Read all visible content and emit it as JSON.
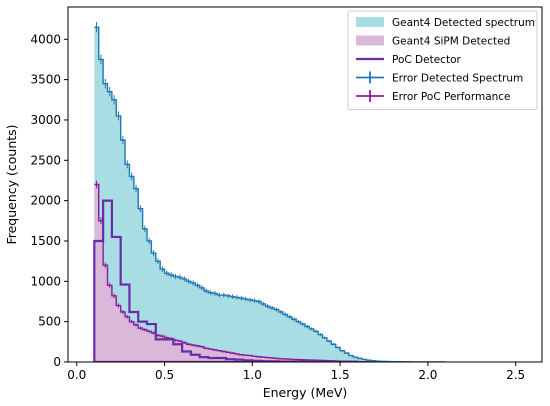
{
  "chart_data": {
    "type": "histogram",
    "xlabel": "Energy (MeV)",
    "ylabel": "Frequency (counts)",
    "xlim": [
      -0.05,
      2.65
    ],
    "ylim": [
      0,
      4400
    ],
    "xticks": [
      0.0,
      0.5,
      1.0,
      1.5,
      2.0,
      2.5
    ],
    "xtick_labels": [
      "0.0",
      "0.5",
      "1.0",
      "1.5",
      "2.0",
      "2.5"
    ],
    "yticks": [
      0,
      500,
      1000,
      1500,
      2000,
      2500,
      3000,
      3500,
      4000
    ],
    "ytick_labels": [
      "0",
      "500",
      "1000",
      "1500",
      "2000",
      "2500",
      "3000",
      "3500",
      "4000"
    ],
    "grid": false,
    "legend_position": "top-right",
    "series": [
      {
        "name": "Geant4 Detected spectrum",
        "kind": "filled-step",
        "color": "#a8dde3",
        "edge_color": "#1f77b4",
        "bin_width": 0.025,
        "x_start": 0.1,
        "values": [
          4150,
          3750,
          3450,
          3350,
          3250,
          3050,
          2750,
          2450,
          2300,
          2150,
          1900,
          1650,
          1500,
          1350,
          1250,
          1150,
          1100,
          1080,
          1060,
          1050,
          1030,
          1000,
          980,
          950,
          920,
          880,
          860,
          850,
          830,
          830,
          820,
          810,
          800,
          790,
          780,
          770,
          760,
          750,
          720,
          690,
          670,
          650,
          620,
          590,
          560,
          530,
          500,
          470,
          440,
          410,
          380,
          340,
          300,
          260,
          220,
          180,
          140,
          110,
          80,
          60,
          45,
          32,
          22,
          16,
          12,
          9,
          7,
          5,
          4,
          3,
          2,
          2,
          1,
          1,
          1,
          1,
          1,
          1,
          1,
          1
        ]
      },
      {
        "name": "Geant4 SiPM Detected",
        "kind": "filled-step",
        "color": "#d9b8d9",
        "edge_color": "#8b1a9c",
        "bin_width": 0.025,
        "x_start": 0.1,
        "values": [
          2200,
          1750,
          1200,
          950,
          820,
          700,
          620,
          560,
          500,
          460,
          420,
          400,
          380,
          360,
          330,
          320,
          300,
          290,
          270,
          260,
          240,
          220,
          210,
          200,
          190,
          170,
          160,
          150,
          140,
          130,
          120,
          110,
          100,
          90,
          85,
          80,
          70,
          65,
          60,
          55,
          50,
          45,
          40,
          38,
          35,
          32,
          30,
          28,
          26,
          24,
          22,
          20,
          18,
          16,
          14,
          12,
          10,
          8,
          6,
          5,
          4,
          3,
          3,
          2,
          2,
          2,
          1,
          1,
          1,
          1
        ]
      },
      {
        "name": "PoC Detector",
        "kind": "step",
        "color": "#6a2ba5",
        "bin_width": 0.05,
        "x_start": 0.1,
        "values": [
          1500,
          2000,
          1550,
          960,
          620,
          500,
          470,
          280,
          280,
          220,
          130,
          90,
          60,
          50,
          50,
          35,
          30,
          20,
          15,
          10,
          8,
          5,
          5,
          5,
          4,
          4,
          3,
          3,
          3,
          3
        ]
      },
      {
        "name": "Error Detected Spectrum",
        "kind": "errorbar",
        "color": "#1f77b4"
      },
      {
        "name": "Error PoC Performance",
        "kind": "errorbar",
        "color": "#8b1a9c"
      }
    ]
  }
}
